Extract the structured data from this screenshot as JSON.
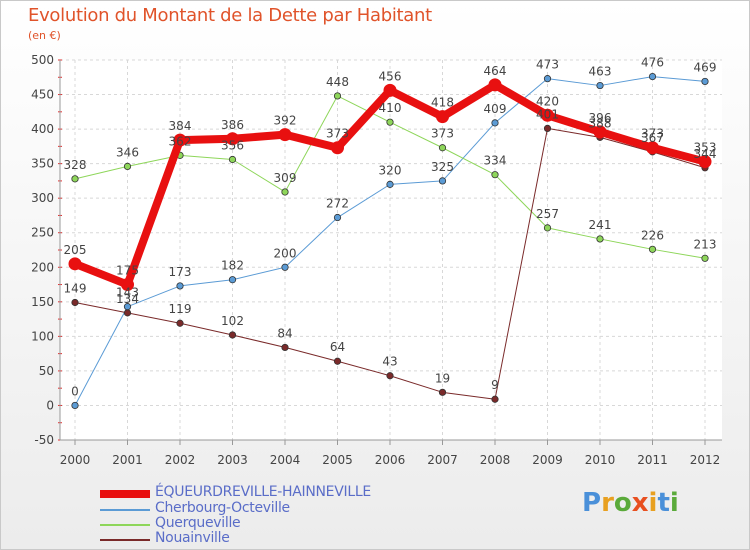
{
  "title": "Evolution du Montant de la Dette par Habitant",
  "unit": "(en €)",
  "logo": {
    "letters": [
      "P",
      "r",
      "o",
      "x",
      "i",
      "t",
      "i"
    ],
    "colors": [
      "#4a90d9",
      "#e8a020",
      "#5aaa3a",
      "#e85020",
      "#e8a020",
      "#4a90d9",
      "#5aaa3a"
    ]
  },
  "chart_data": {
    "type": "line",
    "x": [
      "2000",
      "2001",
      "2002",
      "2003",
      "2004",
      "2005",
      "2006",
      "2007",
      "2008",
      "2009",
      "2010",
      "2011",
      "2012"
    ],
    "ylim": [
      -50,
      500
    ],
    "yticks": [
      "-50",
      "0",
      "50",
      "100",
      "150",
      "200",
      "250",
      "300",
      "350",
      "400",
      "450",
      "500"
    ],
    "grid": true,
    "legend": "bottom-left",
    "series": [
      {
        "name": "ÉQUEURDREVILLE-HAINNEVILLE",
        "color": "#e81010",
        "width": 8,
        "values": [
          205,
          175,
          384,
          386,
          392,
          373,
          456,
          418,
          464,
          420,
          396,
          373,
          353
        ],
        "labels": [
          "205",
          "175",
          "384",
          "386",
          "392",
          "373",
          "456",
          "418",
          "464",
          "420",
          "396",
          "373",
          "353"
        ]
      },
      {
        "name": "Cherbourg-Octeville",
        "color": "#5b9bd5",
        "width": 1,
        "values": [
          0,
          143,
          173,
          182,
          200,
          272,
          320,
          325,
          409,
          473,
          463,
          476,
          469
        ],
        "labels": [
          "0",
          "143",
          "173",
          "182",
          "200",
          "272",
          "320",
          "325",
          "409",
          "473",
          "463",
          "476",
          "469"
        ]
      },
      {
        "name": "Querqueville",
        "color": "#8ed65a",
        "width": 1,
        "values": [
          328,
          346,
          362,
          356,
          309,
          448,
          410,
          373,
          334,
          257,
          241,
          226,
          213
        ],
        "labels": [
          "328",
          "346",
          "362",
          "356",
          "309",
          "448",
          "410",
          "373",
          "334",
          "257",
          "241",
          "226",
          "213"
        ]
      },
      {
        "name": "Nouainville",
        "color": "#7a2a2a",
        "width": 1,
        "values": [
          149,
          134,
          119,
          102,
          84,
          64,
          43,
          19,
          9,
          401,
          388,
          367,
          344
        ],
        "labels": [
          "149",
          "134",
          "119",
          "102",
          "84",
          "64",
          "43",
          "19",
          "9",
          "401",
          "388",
          "367",
          "344"
        ]
      }
    ]
  }
}
